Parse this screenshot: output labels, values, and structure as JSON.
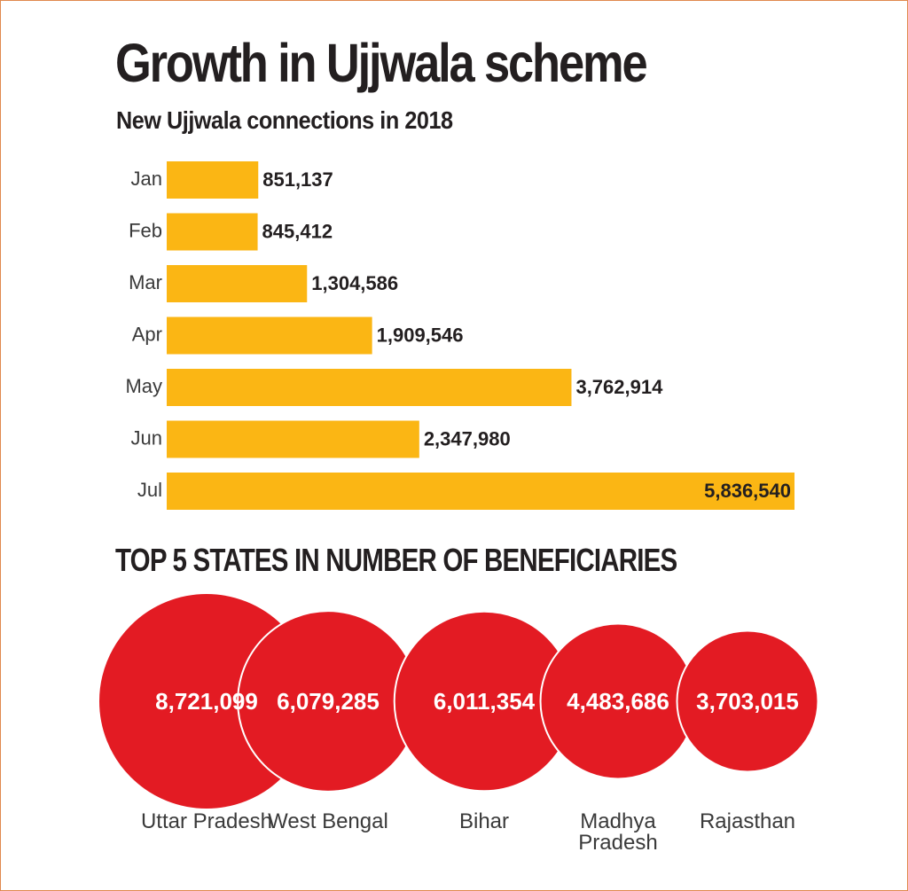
{
  "title": "Growth in Ujjwala scheme",
  "subtitle": "New Ujjwala connections in 2018",
  "section_title": "TOP 5 STATES IN NUMBER OF BENEFICIARIES",
  "colors": {
    "bar": "#fbb614",
    "bubble": "#e31b23",
    "bubble_outline": "#ffffff",
    "text": "#231f20",
    "frame": "#e0894e"
  },
  "chart_data": [
    {
      "type": "bar",
      "orientation": "horizontal",
      "title": "New Ujjwala connections in 2018",
      "xlabel": "",
      "ylabel": "",
      "grid": false,
      "categories": [
        "Jan",
        "Feb",
        "Mar",
        "Apr",
        "May",
        "Jun",
        "Jul"
      ],
      "values": [
        851137,
        845412,
        1304586,
        1909546,
        3762914,
        2347980,
        5836540
      ],
      "value_labels": [
        "851,137",
        "845,412",
        "1,304,586",
        "1,909,546",
        "3,762,914",
        "2,347,980",
        "5,836,540"
      ],
      "xlim": [
        0,
        5836540
      ]
    },
    {
      "type": "bubble",
      "title": "TOP 5 STATES IN NUMBER OF BENEFICIARIES",
      "categories": [
        "Uttar Pradesh",
        "West Bengal",
        "Bihar",
        "Madhya Pradesh",
        "Rajasthan"
      ],
      "label_lines": [
        [
          "Uttar Pradesh"
        ],
        [
          "West Bengal"
        ],
        [
          "Bihar"
        ],
        [
          "Madhya",
          "Pradesh"
        ],
        [
          "Rajasthan"
        ]
      ],
      "values": [
        8721099,
        6079285,
        6011354,
        4483686,
        3703015
      ],
      "value_labels": [
        "8,721,099",
        "6,079,285",
        "6,011,354",
        "4,483,686",
        "3,703,015"
      ]
    }
  ]
}
